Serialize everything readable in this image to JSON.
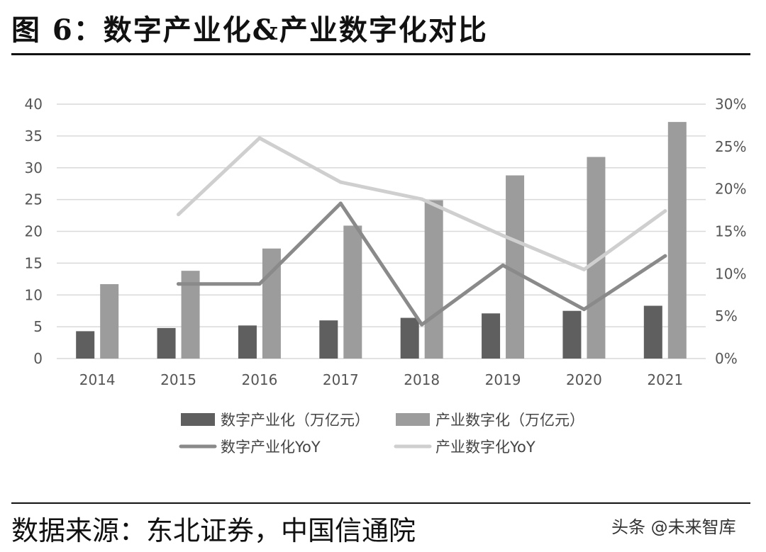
{
  "figure": {
    "title": "图 6：数字产业化&产业数字化对比",
    "source": "数据来源：东北证券，中国信通院",
    "watermark": "头条 @未来智库"
  },
  "colors": {
    "bar_digital_industrialization": "#5f5f5f",
    "bar_industrial_digitalization": "#9c9c9c",
    "line_digital_industrialization_yoy": "#8a8a8a",
    "line_industrial_digitalization_yoy": "#cfcfcf",
    "grid": "#d9d9d9"
  },
  "chart_data": {
    "type": "bar",
    "categories": [
      "2014",
      "2015",
      "2016",
      "2017",
      "2018",
      "2019",
      "2020",
      "2021"
    ],
    "series": [
      {
        "name": "数字产业化（万亿元）",
        "kind": "bar",
        "axis": "left",
        "values": [
          4.3,
          4.8,
          5.2,
          6.0,
          6.4,
          7.1,
          7.5,
          8.3
        ]
      },
      {
        "name": "产业数字化（万亿元）",
        "kind": "bar",
        "axis": "left",
        "values": [
          11.7,
          13.8,
          17.3,
          20.9,
          24.9,
          28.8,
          31.7,
          37.2
        ]
      },
      {
        "name": "数字产业化YoY",
        "kind": "line",
        "axis": "right",
        "values": [
          null,
          8.8,
          8.8,
          18.3,
          4.0,
          11.0,
          5.8,
          12.1
        ]
      },
      {
        "name": "产业数字化YoY",
        "kind": "line",
        "axis": "right",
        "values": [
          null,
          17.0,
          26.0,
          20.8,
          18.8,
          14.5,
          10.5,
          17.4
        ]
      }
    ],
    "y_left": {
      "min": 0,
      "max": 40,
      "ticks": [
        "0",
        "5",
        "10",
        "15",
        "20",
        "25",
        "30",
        "35",
        "40"
      ]
    },
    "y_right": {
      "min": 0,
      "max": 30,
      "ticks": [
        "0%",
        "5%",
        "10%",
        "15%",
        "20%",
        "25%",
        "30%"
      ]
    },
    "grid": true,
    "legend_position": "bottom"
  }
}
